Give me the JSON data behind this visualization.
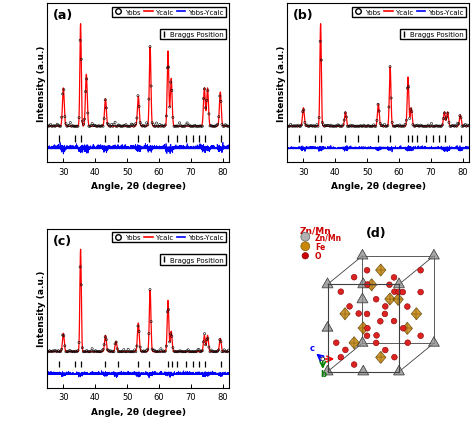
{
  "xlim": [
    25,
    82
  ],
  "xlabel": "Angle, 2θ (degree)",
  "ylabel": "Intensity (a.u.)",
  "panels": [
    "(a)",
    "(b)",
    "(c)"
  ],
  "color_yobs": "#000000",
  "color_ycalc": "#ff0000",
  "color_diff": "#0000ff",
  "bragg_positions_a": [
    28.5,
    33.5,
    35.5,
    43.0,
    47.0,
    53.5,
    57.0,
    62.8,
    65.5,
    68.5,
    70.5,
    72.5,
    74.5,
    79.5
  ],
  "bragg_positions_b": [
    28.5,
    33.5,
    35.5,
    43.0,
    47.0,
    53.5,
    57.0,
    62.8,
    64.0,
    65.5,
    68.5,
    70.5,
    72.5,
    74.5,
    79.5
  ],
  "bragg_positions_c": [
    28.5,
    33.5,
    35.5,
    43.0,
    47.0,
    53.5,
    57.0,
    62.8,
    64.0,
    65.5,
    68.5,
    70.5,
    72.5,
    74.5,
    79.5
  ],
  "peaks_a": [
    30.0,
    35.4,
    37.2,
    43.2,
    53.5,
    57.2,
    62.8,
    63.8,
    74.2,
    75.2,
    79.2
  ],
  "heights_a": [
    0.28,
    0.75,
    0.38,
    0.2,
    0.22,
    0.58,
    0.55,
    0.35,
    0.28,
    0.28,
    0.25
  ],
  "widths_a": [
    0.28,
    0.22,
    0.28,
    0.28,
    0.28,
    0.25,
    0.25,
    0.28,
    0.28,
    0.28,
    0.28
  ],
  "peaks_b": [
    30.0,
    35.4,
    43.2,
    53.5,
    57.2,
    62.8,
    63.8,
    74.2,
    75.2,
    79.2
  ],
  "heights_b": [
    0.18,
    1.0,
    0.14,
    0.22,
    0.58,
    0.48,
    0.18,
    0.14,
    0.14,
    0.11
  ],
  "widths_b": [
    0.28,
    0.22,
    0.28,
    0.28,
    0.25,
    0.25,
    0.28,
    0.28,
    0.28,
    0.28
  ],
  "peaks_c": [
    30.0,
    35.4,
    43.2,
    46.5,
    53.5,
    57.2,
    62.8,
    63.8,
    74.2,
    75.2,
    79.2
  ],
  "heights_c": [
    0.18,
    1.0,
    0.16,
    0.1,
    0.28,
    0.6,
    0.5,
    0.2,
    0.16,
    0.16,
    0.13
  ],
  "widths_c": [
    0.28,
    0.22,
    0.28,
    0.28,
    0.28,
    0.25,
    0.25,
    0.28,
    0.28,
    0.28,
    0.28
  ],
  "color_znmn": "#909090",
  "color_fe": "#c8860a",
  "color_o": "#cc0000",
  "color_znmn_sphere": "#b0b0b0"
}
